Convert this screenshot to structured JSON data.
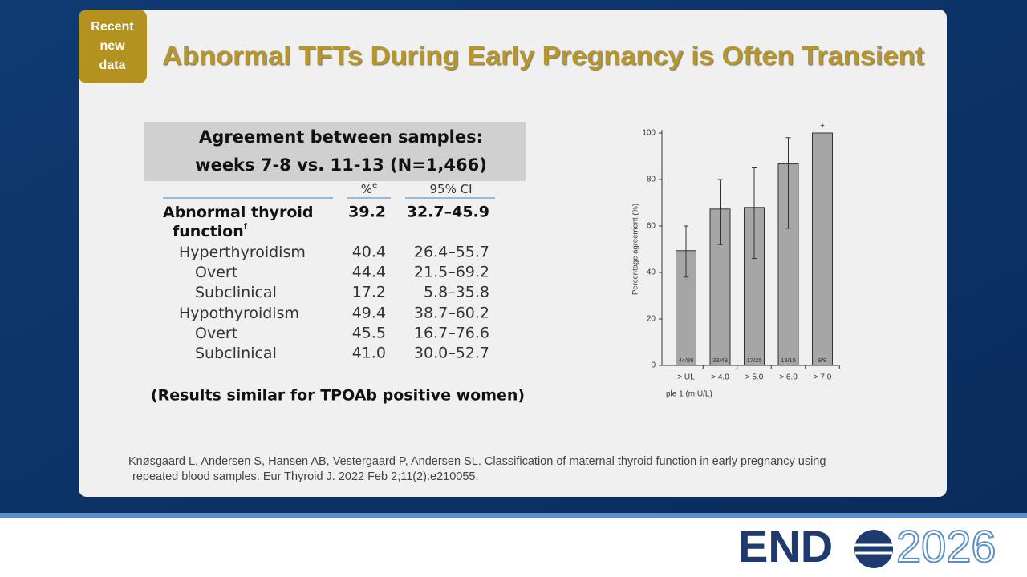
{
  "badge": [
    "Recent",
    "new",
    "data"
  ],
  "header": {
    "title": "Abnormal TFTs During Early Pregnancy is Often Transient"
  },
  "table": {
    "caption": [
      "Agreement between samples:",
      "weeks 7-8 vs. 11-13 (N=1,466)"
    ],
    "columns": [
      {
        "text": "%",
        "sup": "e"
      },
      {
        "text": "95% CI"
      }
    ],
    "rows": [
      {
        "label": [
          "Abnormal thyroid",
          "function"
        ],
        "sup": "f",
        "pct": "39.2",
        "ci": "32.7–45.9"
      },
      {
        "label": [
          "Hyperthyroidism"
        ],
        "pct": "40.4",
        "ci": "26.4–55.7"
      },
      {
        "label": [
          "Overt"
        ],
        "pct": "44.4",
        "ci": "21.5–69.2"
      },
      {
        "label": [
          "Subclinical"
        ],
        "pct": "17.2",
        "ci": "5.8–35.8"
      },
      {
        "label": [
          "Hypothyroidism"
        ],
        "pct": "49.4",
        "ci": "38.7–60.2"
      },
      {
        "label": [
          "Overt"
        ],
        "pct": "45.5",
        "ci": "16.7–76.6"
      },
      {
        "label": [
          "Subclinical"
        ],
        "pct": "41.0",
        "ci": "30.0–52.7"
      }
    ],
    "note": "(Results similar for TPOAb positive women)"
  },
  "chart": {
    "type": "bar",
    "y_label": "Percentage agreement (%)",
    "x_label": "ple 1 (mIU/L)",
    "categories": [
      "> UL",
      "> 4.0",
      "> 5.0",
      "> 6.0",
      "> 7.0"
    ],
    "values": [
      49.4,
      67.3,
      68,
      86.7,
      100
    ],
    "ci_low": [
      38,
      52,
      46,
      59,
      100
    ],
    "ci_high": [
      60,
      80,
      85,
      98,
      100
    ],
    "bar_labels": [
      "44/89",
      "33/49",
      "17/25",
      "13/15",
      "9/9"
    ],
    "annotation": "*",
    "color": "#a6a6a6",
    "ylim": [
      0,
      100
    ],
    "yticks": [
      0,
      20,
      40,
      60,
      80,
      100
    ]
  },
  "citation": [
    "Knøsgaard L, Andersen S, Hansen AB, Vestergaard P, Andersen SL. Classification of maternal thyroid function in early pregnancy using",
    "repeated blood samples. Eur Thyroid J. 2022 Feb 2;11(2):e210055."
  ],
  "logo": {
    "left": "END",
    "right": "2026"
  }
}
